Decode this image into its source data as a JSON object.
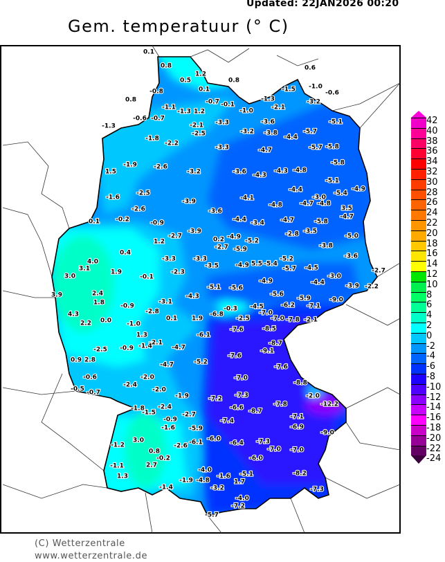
{
  "header": {
    "updated": "Updated: 22JAN2026 00:20",
    "title": "Gem. temperatuur (° C)"
  },
  "footer": {
    "copyright": "(C) Wetterzentrale",
    "url": "www.wetterzentrale.de"
  },
  "colorbar": {
    "labels": [
      "42",
      "40",
      "38",
      "36",
      "34",
      "32",
      "30",
      "28",
      "26",
      "24",
      "22",
      "20",
      "18",
      "16",
      "14",
      "12",
      "10",
      "8",
      "6",
      "4",
      "2",
      "0",
      "-2",
      "-4",
      "-6",
      "-8",
      "-10",
      "-12",
      "-14",
      "-16",
      "-18",
      "-20",
      "-22",
      "-24"
    ],
    "top_arrow_color": "#ff00dc",
    "bottom_arrow_color": "#3c003c",
    "band_colors": [
      "#f000c8",
      "#ff0096",
      "#ff0064",
      "#ff0032",
      "#ff0000",
      "#ff2000",
      "#ff3c00",
      "#ff5000",
      "#ff6400",
      "#ff7800",
      "#ff9600",
      "#ffaa00",
      "#ffc800",
      "#ffe600",
      "#ffff00",
      "#00e600",
      "#00f050",
      "#00ff64",
      "#00ff96",
      "#00ffc8",
      "#00ffff",
      "#00c8ff",
      "#0096ff",
      "#0064ff",
      "#0032ff",
      "#1e00ff",
      "#5000ff",
      "#8c00ff",
      "#c800ff",
      "#ff00ff",
      "#c800c8",
      "#960096",
      "#640064"
    ]
  },
  "map": {
    "unit": "°C",
    "station_values": [
      "0.1",
      "0.8",
      "1.2",
      "0.5",
      "0.8",
      "0.1",
      "-0.8",
      "0.8",
      "-0.7",
      "-1.1",
      "-1.3",
      "1.2",
      "-0.1",
      "-1.0",
      "0.6",
      "-1.5",
      "-1.0",
      "-0.6",
      "-1.3",
      "-2.1",
      "-3.2",
      "-5.1",
      "-0.6",
      "-0.7",
      "-1.3",
      "-2.1",
      "-2.5",
      "-3.3",
      "-3.2",
      "-3.6",
      "-3.8",
      "-4.4",
      "-5.7",
      "-1.8",
      "-2.2",
      "-3.3",
      "-4.7",
      "-5.7",
      "-5.8",
      "-1.9",
      "-2.6",
      "-3.2",
      "-3.6",
      "-4.3",
      "-4.3",
      "-4.8",
      "-5.8",
      "1.5",
      "-5.1",
      "-2.5",
      "-4.4",
      "-5.4",
      "-4.9",
      "-1.6",
      "-3.9",
      "-4.1",
      "-3.0",
      "-4.7",
      "-4.8",
      "-2.6",
      "-3.6",
      "-4.8",
      "3.5",
      "-4.7",
      "0.1",
      "-0.2",
      "-0.9",
      "-4.4",
      "-3.4",
      "-4.7",
      "-5.8",
      "-3.9",
      "-2.8",
      "-3.5",
      "-5.0",
      "1.2",
      "-2.7",
      "0.2",
      "-4.9",
      "-5.2",
      "-2.7",
      "-5.9",
      "-3.8",
      "0.4",
      "4.0",
      "3.1",
      "-3.3",
      "-3.3",
      "-3.5",
      "-2.3",
      "-4.9",
      "5.5",
      "-5.4",
      "-5.2",
      "-5.7",
      "-4.5",
      "-3.6",
      "-2.7",
      "1.9",
      "3.0",
      "-0.1",
      "-3.0",
      "-4.4",
      "-4.9",
      "-3.9",
      "-2.2",
      "-5.1",
      "-5.6",
      "3.9",
      "2.4",
      "-4.3",
      "-5.6",
      "-5.9",
      "-9.0",
      "1.8",
      "-3.1",
      "-0.9",
      "-2.8",
      "-0.3",
      "-4.5",
      "-6.2",
      "-7.1",
      "-7.0",
      "4.3",
      "0.1",
      "1.9",
      "-6.8",
      "-2.5",
      "-7.0",
      "-7.8",
      "-2.1",
      "2.2",
      "0.0",
      "-1.0",
      "-8.5",
      "-7.6",
      "-6.1",
      "1.3",
      "-2.1",
      "-8.7",
      "-9.1",
      "-2.5",
      "-0.9",
      "-1.4",
      "-4.7",
      "-7.6",
      "-7.6",
      "0.9",
      "2.8",
      "-5.2",
      "-4.7",
      "-2.0",
      "-7.0",
      "-8.8",
      "-0.6",
      "-2.4",
      "-2.0",
      "-0.5",
      "-0.7",
      "-1.9",
      "-7.2",
      "-7.3",
      "-2.0",
      "-12.2",
      "-1.8",
      "-1.5",
      "-2.4",
      "-2.7",
      "-7.8",
      "-6.6",
      "-8.7",
      "-0.9",
      "-7.4",
      "-7.1",
      "-1.6",
      "-5.9",
      "-6.9",
      "-9.0",
      "-6.1",
      "-6.0",
      "3.0",
      "-1.2",
      "-6.4",
      "-7.3",
      "-7.0",
      "-7.0",
      "-2.6",
      "0.8",
      "-0.2",
      "2.7",
      "-1.1",
      "-6.0",
      "1.3",
      "-1.6",
      "-5.1",
      "1.7",
      "-8.2",
      "-4.0",
      "-1.9",
      "-4.8",
      "-3.2",
      "-1.4",
      "-7.3",
      "-4.0",
      "-7.2",
      "-5.7"
    ]
  }
}
